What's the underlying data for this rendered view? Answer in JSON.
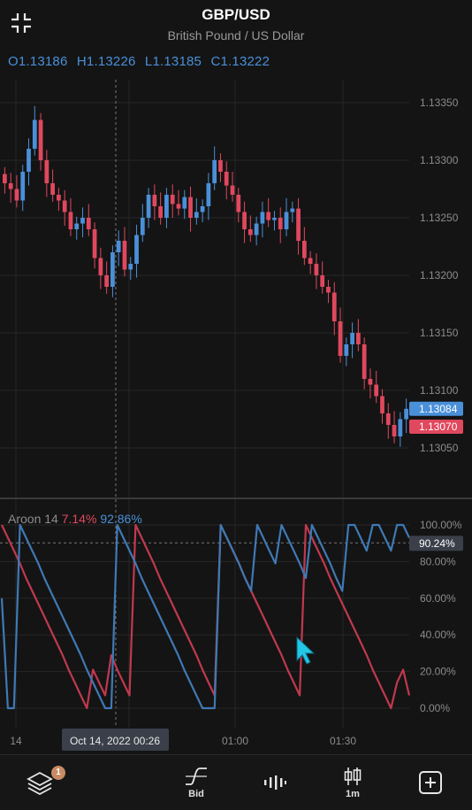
{
  "header": {
    "symbol": "GBP/USD",
    "description": "British Pound / US Dollar"
  },
  "ohlc": {
    "open": "O1.13186",
    "high": "H1.13226",
    "low": "L1.13185",
    "close": "C1.13222"
  },
  "price_axis": {
    "ticks": [
      "1.13350",
      "1.13300",
      "1.13250",
      "1.13200",
      "1.13150",
      "1.13100",
      "1.13050"
    ],
    "ask_label": "1.13084",
    "bid_label": "1.13070"
  },
  "indicator": {
    "name": "Aroon 14",
    "down_value": "7.14%",
    "up_value": "92.86%",
    "crosshair_value": "90.24%",
    "ticks": [
      "100.00%",
      "80.00%",
      "60.00%",
      "40.00%",
      "20.00%",
      "0.00%"
    ]
  },
  "time_axis": {
    "labels": [
      "14",
      "01:00",
      "01:30"
    ],
    "crosshair_label": "Oct 14, 2022    00:26"
  },
  "colors": {
    "up": "#4a90d9",
    "down": "#e0485e",
    "background": "#141414",
    "aroon_up": "#3f79b5",
    "aroon_down": "#c0394f"
  },
  "chart_data": {
    "type": "candlestick",
    "title": "GBP/USD",
    "ylim": [
      1.1302,
      1.1337
    ],
    "candles_close": [
      1.1328,
      1.13275,
      1.13265,
      1.1329,
      1.1331,
      1.13335,
      1.133,
      1.1328,
      1.1327,
      1.13265,
      1.13255,
      1.1324,
      1.13245,
      1.1325,
      1.1324,
      1.13215,
      1.132,
      1.1319,
      1.1322,
      1.1323,
      1.13205,
      1.1321,
      1.13235,
      1.1325,
      1.1327,
      1.1326,
      1.1325,
      1.1327,
      1.13262,
      1.13258,
      1.13268,
      1.1325,
      1.13255,
      1.1326,
      1.1328,
      1.133,
      1.1329,
      1.13278,
      1.1327,
      1.13255,
      1.1324,
      1.13235,
      1.13245,
      1.13255,
      1.13248,
      1.1325,
      1.1324,
      1.13255,
      1.13258,
      1.1323,
      1.13215,
      1.1321,
      1.132,
      1.1319,
      1.13185,
      1.1316,
      1.1313,
      1.1314,
      1.1315,
      1.1314,
      1.1311,
      1.13105,
      1.13095,
      1.1308,
      1.1307,
      1.1306,
      1.13075,
      1.13084
    ],
    "aroon_up": [
      60,
      0,
      0,
      100,
      93,
      86,
      79,
      71,
      64,
      57,
      50,
      43,
      36,
      29,
      21,
      14,
      7,
      0,
      0,
      100,
      93,
      86,
      79,
      71,
      64,
      57,
      50,
      43,
      36,
      29,
      21,
      14,
      7,
      0,
      0,
      0,
      100,
      93,
      86,
      79,
      71,
      64,
      100,
      93,
      86,
      79,
      100,
      93,
      86,
      79,
      71,
      100,
      93,
      86,
      79,
      71,
      64,
      100,
      100,
      93,
      86,
      100,
      100,
      93,
      86,
      100,
      100,
      93
    ],
    "aroon_down": [
      100,
      93,
      86,
      79,
      71,
      64,
      57,
      50,
      43,
      36,
      29,
      21,
      14,
      7,
      0,
      21,
      14,
      7,
      29,
      21,
      14,
      7,
      100,
      93,
      86,
      79,
      71,
      64,
      57,
      50,
      43,
      36,
      29,
      21,
      14,
      7,
      100,
      93,
      86,
      79,
      71,
      64,
      57,
      50,
      43,
      36,
      29,
      21,
      14,
      7,
      100,
      93,
      86,
      79,
      71,
      64,
      57,
      50,
      43,
      36,
      29,
      21,
      14,
      7,
      0,
      14,
      21,
      7
    ]
  },
  "nav": {
    "layers_badge": "1",
    "bid_label": "Bid",
    "interval_label": "1m"
  }
}
